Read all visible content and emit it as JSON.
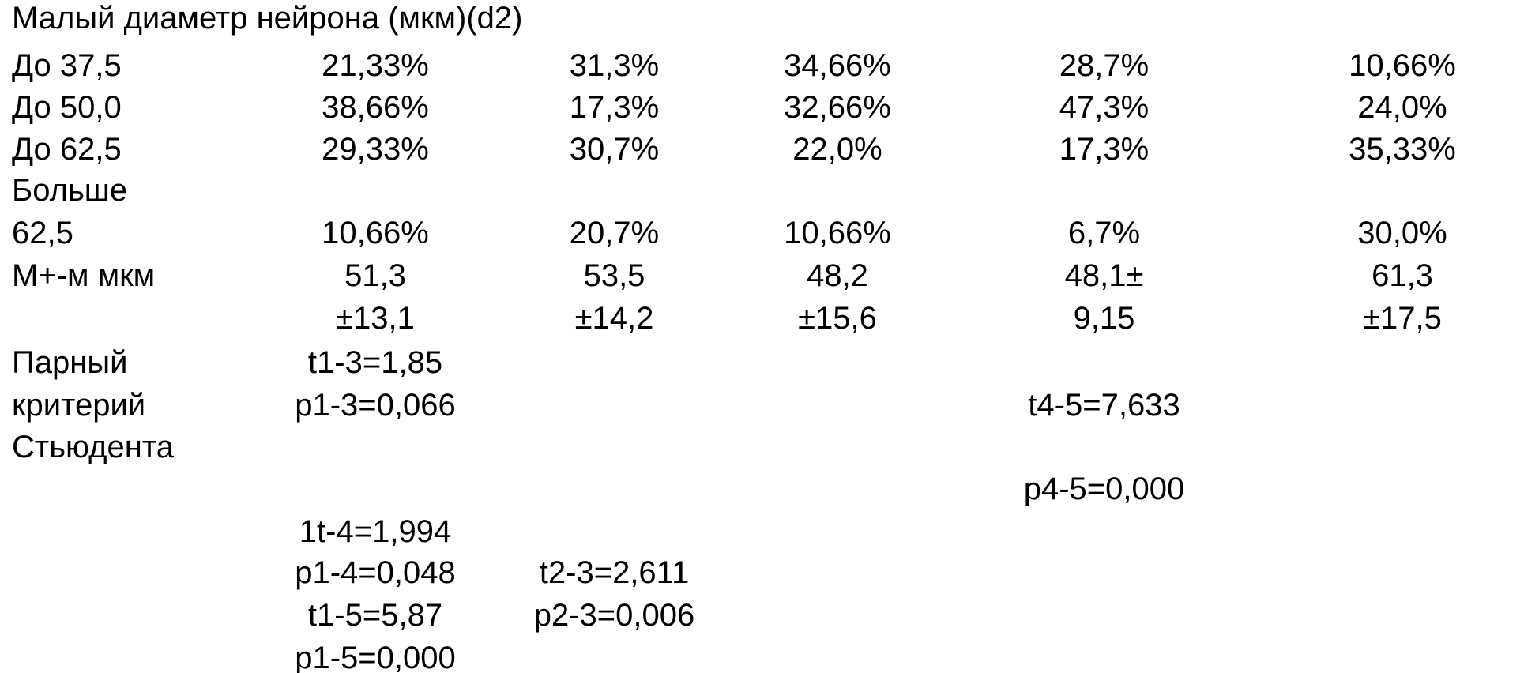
{
  "title": "Малый диаметр нейрона (мкм)(d2)",
  "rows": [
    {
      "label": [
        "До 37,5"
      ],
      "cells": [
        [
          "21,33%"
        ],
        [
          "31,3%"
        ],
        [
          "34,66%"
        ],
        [
          "28,7%"
        ],
        [
          "10,66%"
        ]
      ]
    },
    {
      "label": [
        "До 50,0"
      ],
      "cells": [
        [
          "38,66%"
        ],
        [
          "17,3%"
        ],
        [
          "32,66%"
        ],
        [
          "47,3%"
        ],
        [
          "24,0%"
        ]
      ]
    },
    {
      "label": [
        "До 62,5"
      ],
      "cells": [
        [
          "29,33%"
        ],
        [
          "30,7%"
        ],
        [
          "22,0%"
        ],
        [
          "17,3%"
        ],
        [
          "35,33%"
        ]
      ]
    },
    {
      "label": [
        "Больше",
        "62,5"
      ],
      "cells": [
        [
          "10,66%"
        ],
        [
          "20,7%"
        ],
        [
          "10,66%"
        ],
        [
          "6,7%"
        ],
        [
          "30,0%"
        ]
      ]
    },
    {
      "label": [
        "М+-м мкм"
      ],
      "cells": [
        [
          "51,3",
          "±13,1"
        ],
        [
          "53,5",
          "±14,2"
        ],
        [
          "48,2",
          "±15,6"
        ],
        [
          "48,1±",
          "9,15"
        ],
        [
          "61,3",
          "±17,5"
        ]
      ]
    }
  ],
  "student": {
    "label": [
      "Парный",
      "критерий",
      "Стьюдента"
    ],
    "results": [
      "t1-3=1,85",
      "p1-3=0,066",
      "t4-5=7,633",
      "p4-5=0,000",
      "1t-4=1,994",
      "p1-4=0,048",
      "t2-3=2,611",
      "t1-5=5,87",
      "p2-3=0,006",
      "p1-5=0,000"
    ]
  }
}
